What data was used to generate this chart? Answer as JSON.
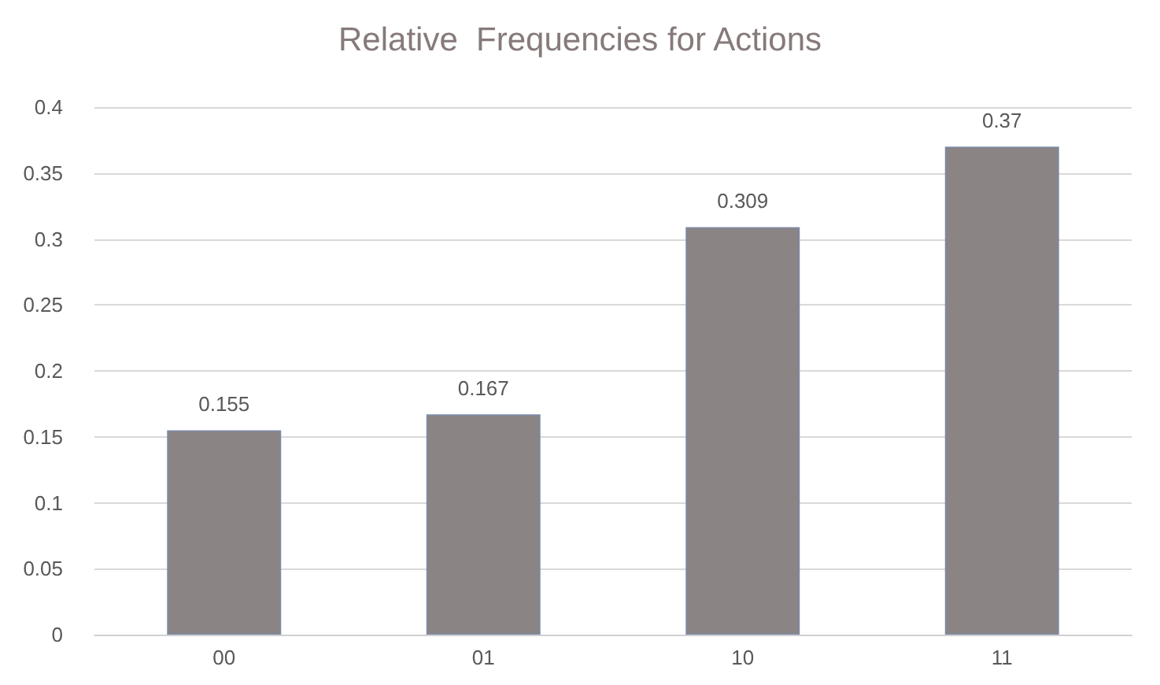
{
  "chart_data": {
    "type": "bar",
    "title": "Relative  Frequencies for Actions",
    "categories": [
      "00",
      "01",
      "10",
      "11"
    ],
    "values": [
      0.155,
      0.167,
      0.309,
      0.37
    ],
    "color": "#8a8484",
    "ylim": [
      0,
      0.4
    ],
    "yticks": [
      0,
      0.05,
      0.1,
      0.15,
      0.2,
      0.25,
      0.3,
      0.35,
      0.4
    ],
    "grid": "y",
    "data_labels": true
  }
}
